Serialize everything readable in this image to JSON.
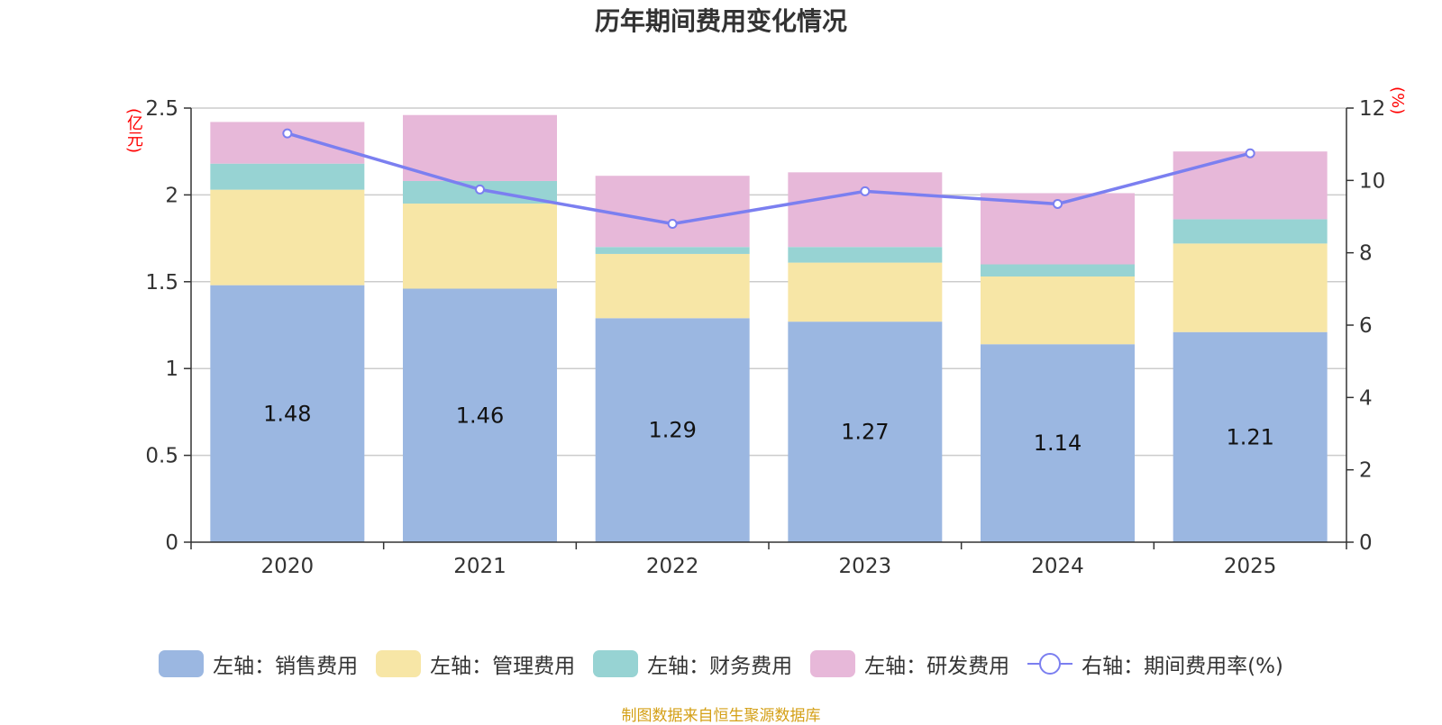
{
  "title": "历年期间费用变化情况",
  "left_unit": "(亿元)",
  "right_unit": "(%)",
  "source": "制图数据来自恒生聚源数据库",
  "colors": {
    "sales": "#9bb7e1",
    "admin": "#f7e6a6",
    "finance": "#97d3d3",
    "rnd": "#e7b8d9",
    "line": "#7b7ff0"
  },
  "chart_data": {
    "type": "bar",
    "title": "历年期间费用变化情况",
    "categories": [
      "2020",
      "2021",
      "2022",
      "2023",
      "2024",
      "2025"
    ],
    "series": [
      {
        "name": "左轴：销售费用",
        "axis": "left",
        "values": [
          1.48,
          1.46,
          1.29,
          1.27,
          1.14,
          1.21
        ]
      },
      {
        "name": "左轴：管理费用",
        "axis": "left",
        "values": [
          0.55,
          0.49,
          0.37,
          0.34,
          0.39,
          0.51
        ]
      },
      {
        "name": "左轴：财务费用",
        "axis": "left",
        "values": [
          0.15,
          0.13,
          0.04,
          0.09,
          0.07,
          0.14
        ]
      },
      {
        "name": "左轴：研发费用",
        "axis": "left",
        "values": [
          0.24,
          0.38,
          0.41,
          0.43,
          0.41,
          0.39
        ]
      },
      {
        "name": "右轴：期间费用率(%)",
        "axis": "right",
        "type": "line",
        "values": [
          11.3,
          9.75,
          8.8,
          9.7,
          9.35,
          10.75
        ]
      }
    ],
    "data_labels": [
      "1.48",
      "1.46",
      "1.29",
      "1.27",
      "1.14",
      "1.21"
    ],
    "y_left": {
      "range": [
        0,
        2.5
      ],
      "ticks": [
        "0",
        "0.5",
        "1",
        "1.5",
        "2",
        "2.5"
      ],
      "label": "(亿元)"
    },
    "y_right": {
      "range": [
        0,
        12
      ],
      "ticks": [
        "0",
        "2",
        "4",
        "6",
        "8",
        "10",
        "12"
      ],
      "label": "(%)"
    },
    "grid": true,
    "legend_position": "bottom"
  }
}
